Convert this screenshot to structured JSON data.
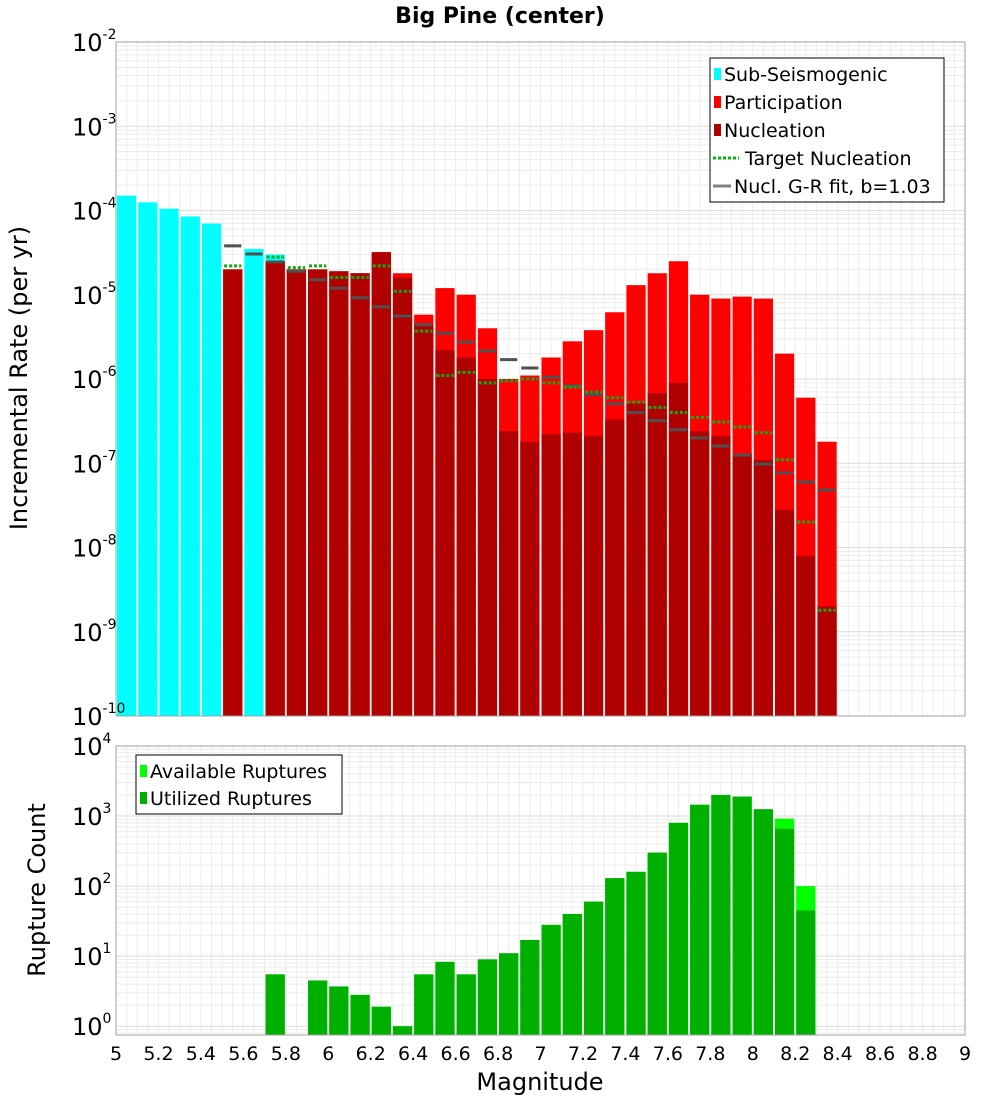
{
  "chart_data": [
    {
      "type": "bar",
      "title": "Big Pine (center)",
      "xlabel": "",
      "ylabel": "Incremental Rate (per yr)",
      "yscale": "log",
      "ylim": [
        1e-10,
        0.01
      ],
      "xlim": [
        5,
        9
      ],
      "grid": true,
      "legend_position": "top-right",
      "bin_width": 0.1,
      "ytick_labels": [
        {
          "base": "10",
          "exp": "-10",
          "value": 1e-10
        },
        {
          "base": "10",
          "exp": "-9",
          "value": 1e-09
        },
        {
          "base": "10",
          "exp": "-8",
          "value": 1e-08
        },
        {
          "base": "10",
          "exp": "-7",
          "value": 1e-07
        },
        {
          "base": "10",
          "exp": "-6",
          "value": 1e-06
        },
        {
          "base": "10",
          "exp": "-5",
          "value": 1e-05
        },
        {
          "base": "10",
          "exp": "-4",
          "value": 0.0001
        },
        {
          "base": "10",
          "exp": "-3",
          "value": 0.001
        },
        {
          "base": "10",
          "exp": "-2",
          "value": 0.01
        }
      ],
      "legend": [
        {
          "label": "Sub-Seismogenic",
          "color": "#00ffff",
          "kind": "bar"
        },
        {
          "label": "Participation",
          "color": "#ff0000",
          "kind": "bar"
        },
        {
          "label": "Nucleation",
          "color": "#b00000",
          "kind": "bar"
        },
        {
          "label": "Target Nucleation",
          "color": "#00bb00",
          "kind": "dotted"
        },
        {
          "label": "Nucl. G-R fit, b=1.03",
          "color": "#808080",
          "kind": "line"
        }
      ],
      "series": [
        {
          "name": "Sub-Seismogenic",
          "x": [
            5.05,
            5.15,
            5.25,
            5.35,
            5.45,
            5.65,
            5.75
          ],
          "values": [
            0.00015,
            0.000125,
            0.000105,
            8.5e-05,
            7e-05,
            3.5e-05,
            3e-05
          ]
        },
        {
          "name": "Participation",
          "x": [
            5.55,
            5.75,
            5.85,
            5.95,
            6.05,
            6.15,
            6.25,
            6.35,
            6.45,
            6.55,
            6.65,
            6.75,
            6.85,
            6.95,
            7.05,
            7.15,
            7.25,
            7.35,
            7.45,
            7.55,
            7.65,
            7.75,
            7.85,
            7.95,
            8.05,
            8.15,
            8.25,
            8.35
          ],
          "values": [
            2e-05,
            2.5e-05,
            2e-05,
            2e-05,
            1.9e-05,
            1.8e-05,
            3.2e-05,
            1.8e-05,
            5.8e-06,
            1.2e-05,
            1e-05,
            4e-06,
            1e-06,
            1.1e-06,
            1.8e-06,
            2.8e-06,
            3.8e-06,
            6.2e-06,
            1.3e-05,
            1.8e-05,
            2.5e-05,
            1e-05,
            9e-06,
            9.5e-06,
            9e-06,
            2e-06,
            6e-07,
            1.8e-07
          ]
        },
        {
          "name": "Nucleation",
          "x": [
            5.55,
            5.75,
            5.85,
            5.95,
            6.05,
            6.15,
            6.25,
            6.35,
            6.45,
            6.55,
            6.65,
            6.75,
            6.85,
            6.95,
            7.05,
            7.15,
            7.25,
            7.35,
            7.45,
            7.55,
            7.65,
            7.75,
            7.85,
            7.95,
            8.05,
            8.15,
            8.25,
            8.35
          ],
          "values": [
            2e-05,
            2.5e-05,
            2e-05,
            2e-05,
            1.9e-05,
            1.8e-05,
            3.2e-05,
            1.6e-05,
            4.5e-06,
            2.2e-06,
            1.8e-06,
            1e-06,
            2.4e-07,
            1.8e-07,
            2.2e-07,
            2.3e-07,
            2.1e-07,
            3.3e-07,
            5.2e-07,
            6.8e-07,
            9e-07,
            2.4e-07,
            2.1e-07,
            1.3e-07,
            1.1e-07,
            2.8e-08,
            8e-09,
            2e-09
          ]
        },
        {
          "name": "Target Nucleation",
          "x": [
            5.55,
            5.75,
            5.85,
            5.95,
            6.05,
            6.15,
            6.25,
            6.35,
            6.45,
            6.55,
            6.65,
            6.75,
            6.85,
            6.95,
            7.05,
            7.15,
            7.25,
            7.35,
            7.45,
            7.55,
            7.65,
            7.75,
            7.85,
            7.95,
            8.05,
            8.15,
            8.25,
            8.35
          ],
          "values": [
            2.2e-05,
            2.8e-05,
            2.1e-05,
            2.2e-05,
            1.6e-05,
            1.6e-05,
            2.2e-05,
            1.1e-05,
            3.7e-06,
            1.1e-06,
            1.2e-06,
            9e-07,
            9.5e-07,
            1e-06,
            9e-07,
            8e-07,
            7e-07,
            6e-07,
            5.3e-07,
            4.6e-07,
            4e-07,
            3.5e-07,
            3.1e-07,
            2.7e-07,
            2.3e-07,
            1.1e-07,
            2e-08,
            1.8e-09
          ]
        },
        {
          "name": "Nucl. G-R fit, b=1.03",
          "x": [
            5.55,
            5.65,
            5.75,
            5.85,
            5.95,
            6.05,
            6.15,
            6.25,
            6.35,
            6.45,
            6.55,
            6.65,
            6.75,
            6.85,
            6.95,
            7.05,
            7.15,
            7.25,
            7.35,
            7.45,
            7.55,
            7.65,
            7.75,
            7.85,
            7.95,
            8.05,
            8.15,
            8.25,
            8.35
          ],
          "values": [
            3.8e-05,
            3.05e-05,
            2.45e-05,
            1.9e-05,
            1.5e-05,
            1.2e-05,
            9.2e-06,
            7.2e-06,
            5.6e-06,
            4.4e-06,
            3.5e-06,
            2.75e-06,
            2.15e-06,
            1.7e-06,
            1.35e-06,
            1.05e-06,
            8.3e-07,
            6.5e-07,
            5.1e-07,
            4e-07,
            3.2e-07,
            2.5e-07,
            2e-07,
            1.6e-07,
            1.25e-07,
            9.8e-08,
            7.7e-08,
            6e-08,
            4.8e-08
          ]
        }
      ]
    },
    {
      "type": "bar",
      "title": "",
      "xlabel": "Magnitude",
      "ylabel": "Rupture Count",
      "yscale": "log",
      "ylim": [
        0.75,
        10000
      ],
      "xlim": [
        5,
        9
      ],
      "grid": true,
      "legend_position": "top-left",
      "bin_width": 0.1,
      "xtick_labels": [
        "5",
        "5.2",
        "5.4",
        "5.6",
        "5.8",
        "6",
        "6.2",
        "6.4",
        "6.6",
        "6.8",
        "7",
        "7.2",
        "7.4",
        "7.6",
        "7.8",
        "8",
        "8.2",
        "8.4",
        "8.6",
        "8.8",
        "9"
      ],
      "xtick_values": [
        5,
        5.2,
        5.4,
        5.6,
        5.8,
        6,
        6.2,
        6.4,
        6.6,
        6.8,
        7,
        7.2,
        7.4,
        7.6,
        7.8,
        8,
        8.2,
        8.4,
        8.6,
        8.8,
        9
      ],
      "ytick_labels": [
        {
          "base": "10",
          "exp": "0",
          "value": 1
        },
        {
          "base": "10",
          "exp": "1",
          "value": 10
        },
        {
          "base": "10",
          "exp": "2",
          "value": 100
        },
        {
          "base": "10",
          "exp": "3",
          "value": 1000
        },
        {
          "base": "10",
          "exp": "4",
          "value": 10000
        }
      ],
      "legend": [
        {
          "label": "Available Ruptures",
          "color": "#00ff00",
          "kind": "bar"
        },
        {
          "label": "Utilized Ruptures",
          "color": "#00b000",
          "kind": "bar"
        }
      ],
      "series": [
        {
          "name": "Available Ruptures",
          "x": [
            5.75,
            5.95,
            6.05,
            6.15,
            6.25,
            6.35,
            6.45,
            6.55,
            6.65,
            6.75,
            6.85,
            6.95,
            7.05,
            7.15,
            7.25,
            7.35,
            7.45,
            7.55,
            7.65,
            7.75,
            7.85,
            7.95,
            8.05,
            8.15,
            8.25
          ],
          "values": [
            5.5,
            4.5,
            3.7,
            2.8,
            1.9,
            1,
            5.5,
            8.3,
            5.5,
            9,
            11,
            17,
            28,
            40,
            60,
            130,
            160,
            300,
            800,
            1450,
            2000,
            1900,
            1250,
            920,
            100
          ]
        },
        {
          "name": "Utilized Ruptures",
          "x": [
            5.75,
            5.95,
            6.05,
            6.15,
            6.25,
            6.35,
            6.45,
            6.55,
            6.65,
            6.75,
            6.85,
            6.95,
            7.05,
            7.15,
            7.25,
            7.35,
            7.45,
            7.55,
            7.65,
            7.75,
            7.85,
            7.95,
            8.05,
            8.15,
            8.25
          ],
          "values": [
            5.5,
            4.5,
            3.7,
            2.8,
            1.9,
            1,
            5.5,
            8.3,
            5.5,
            9,
            11,
            17,
            28,
            40,
            60,
            130,
            160,
            300,
            800,
            1450,
            2000,
            1900,
            1250,
            660,
            45
          ]
        }
      ]
    }
  ]
}
